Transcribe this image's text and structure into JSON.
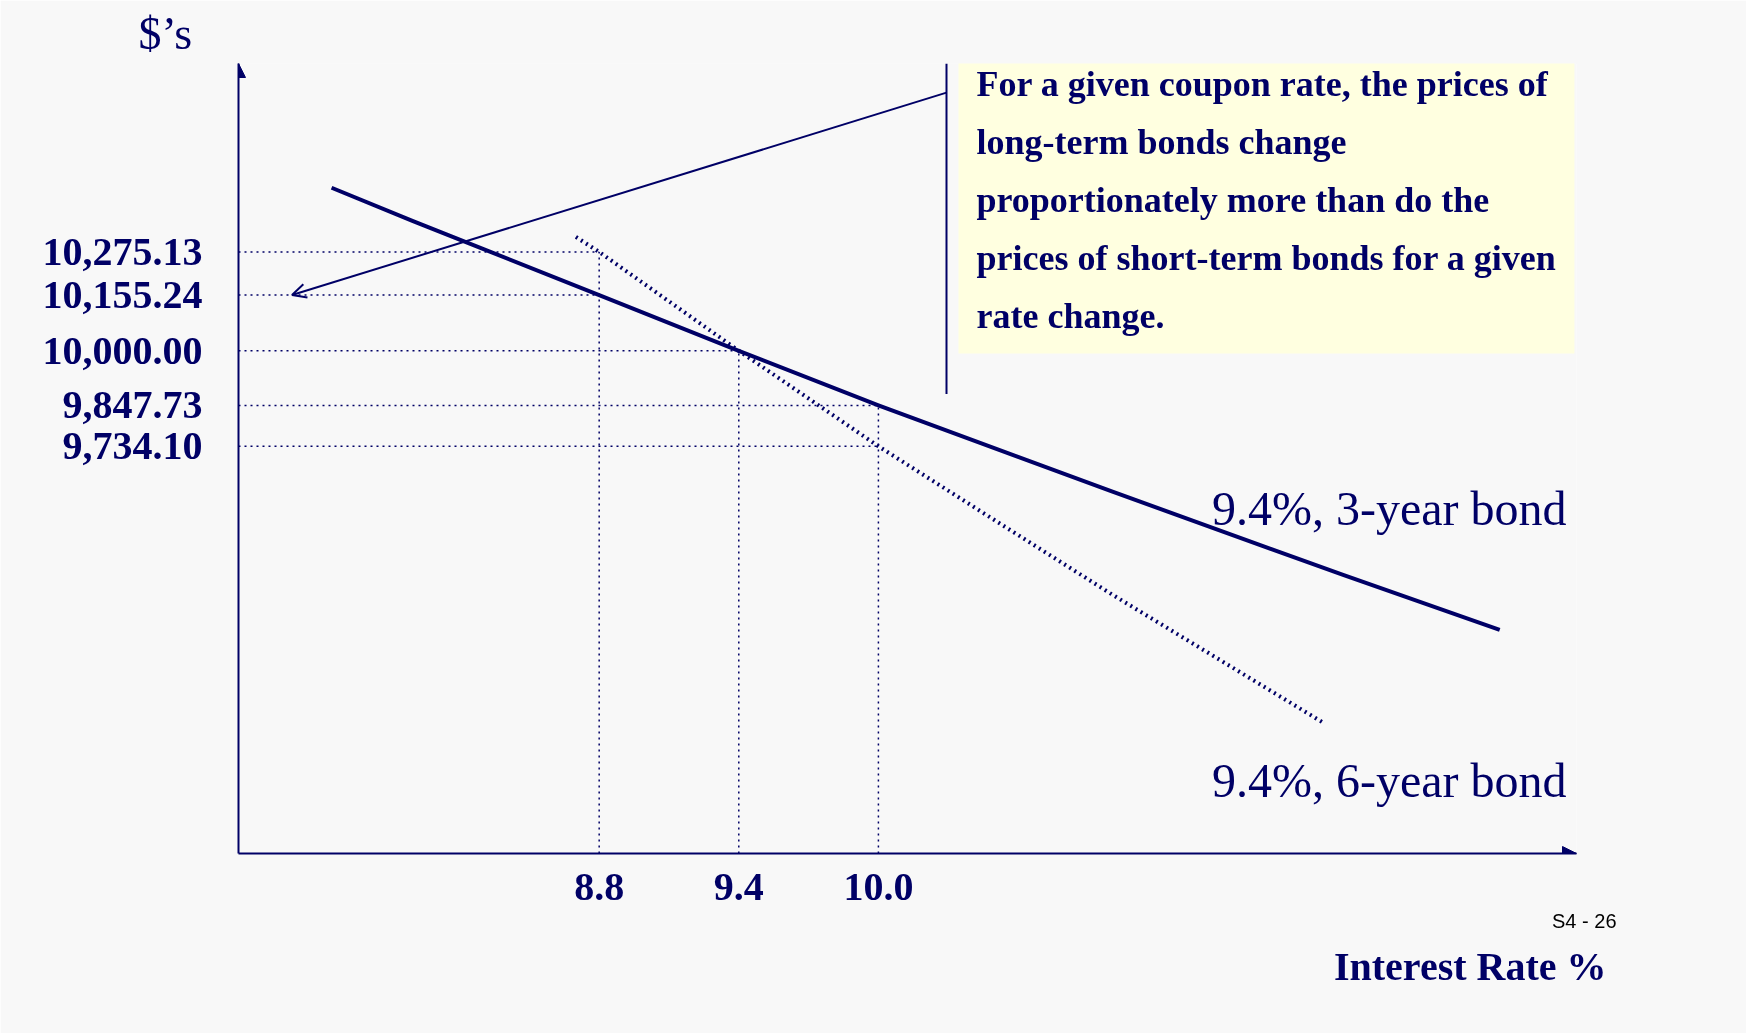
{
  "chart_data": {
    "type": "line",
    "xlabel": "Interest Rate %",
    "ylabel": "$’s",
    "xlim": [
      7.25,
      13.0
    ],
    "ylim": [
      8600,
      10800
    ],
    "xticks": [
      8.8,
      9.4,
      {
        "value": 10.0,
        "label": "10.0"
      }
    ],
    "yticks": [
      {
        "value": 9734.1,
        "label": "9,734.10"
      },
      {
        "value": 9847.73,
        "label": "9,847.73"
      },
      {
        "value": 10000,
        "label": "10,000.00"
      },
      {
        "value": 10155.24,
        "label": "10,155.24"
      },
      {
        "value": 10275.13,
        "label": "10,275.13"
      }
    ],
    "grid": false,
    "marker": "none",
    "series": [
      {
        "name": "9.4%, 3-year bond",
        "color": "#000066",
        "line_style": "solid",
        "x": [
          7.65,
          8.0,
          8.8,
          9.4,
          10.0,
          11.0,
          12.0,
          12.67
        ],
        "values": [
          10454,
          10361,
          10155.24,
          10000,
          9847.73,
          9609,
          9375,
          9223
        ]
      },
      {
        "name": "9.4%, 6-year bond",
        "color": "#000066",
        "line_style": "dotted",
        "x": [
          8.7,
          8.8,
          9.4,
          10.0,
          10.5,
          11.0,
          11.92
        ],
        "values": [
          10317,
          10275.13,
          10000,
          9734.1,
          9528,
          9323,
          8961
        ]
      }
    ],
    "ref_lines": [
      {
        "axis": "y",
        "value": 10275.13,
        "line_style": "dotted"
      },
      {
        "axis": "y",
        "value": 10155.24,
        "line_style": "dotted"
      },
      {
        "axis": "y",
        "value": 10000,
        "line_style": "dotted"
      },
      {
        "axis": "y",
        "value": 9847.73,
        "line_style": "dotted"
      },
      {
        "axis": "y",
        "value": 9734.1,
        "line_style": "dotted"
      },
      {
        "axis": "x",
        "value": 8.8,
        "line_style": "dotted"
      },
      {
        "axis": "x",
        "value": 9.4,
        "line_style": "dotted"
      },
      {
        "axis": "x",
        "value": 10.0,
        "line_style": "dotted"
      }
    ],
    "annotations": [
      {
        "text": "For a given coupon rate, the prices of\nlong-term bonds change\nproportionately more than do the\nprices of short-term bonds for a given\nrate change.",
        "x": 7.48,
        "y": 10155.24
      },
      "S4 - 26"
    ]
  }
}
